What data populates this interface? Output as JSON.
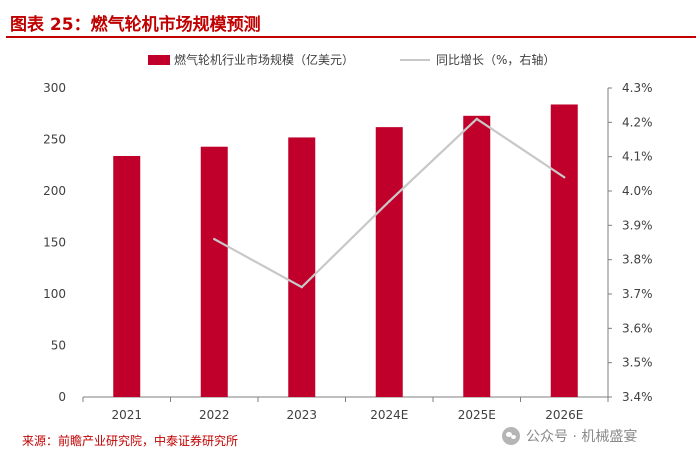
{
  "title": "图表 25：燃气轮机市场规模预测",
  "source": "来源：前瞻产业研究院，中泰证券研究所",
  "watermark": "公众号 · 机械盛宴",
  "colors": {
    "bar": "#c0002a",
    "line": "#c8c8c8",
    "accent": "#c00000",
    "axis": "#7f7f7f",
    "text": "#404040"
  },
  "chart_data": {
    "type": "bar",
    "categories": [
      "2021",
      "2022",
      "2023",
      "2024E",
      "2025E",
      "2026E"
    ],
    "series": [
      {
        "name": "燃气轮机行业市场规模（亿美元）",
        "type": "bar",
        "axis": "left",
        "values": [
          234,
          243,
          252,
          262,
          273,
          284
        ]
      },
      {
        "name": "同比增长（%，右轴）",
        "type": "line",
        "axis": "right",
        "values": [
          null,
          3.86,
          3.72,
          3.97,
          4.21,
          4.04
        ]
      }
    ],
    "y_left": {
      "min": 0,
      "max": 300,
      "ticks": [
        "0",
        "50",
        "100",
        "150",
        "200",
        "250",
        "300"
      ]
    },
    "y_right": {
      "min": 3.4,
      "max": 4.3,
      "ticks": [
        "3.4%",
        "3.5%",
        "3.6%",
        "3.7%",
        "3.8%",
        "3.9%",
        "4.0%",
        "4.1%",
        "4.2%",
        "4.3%"
      ]
    },
    "legend_position": "top"
  }
}
